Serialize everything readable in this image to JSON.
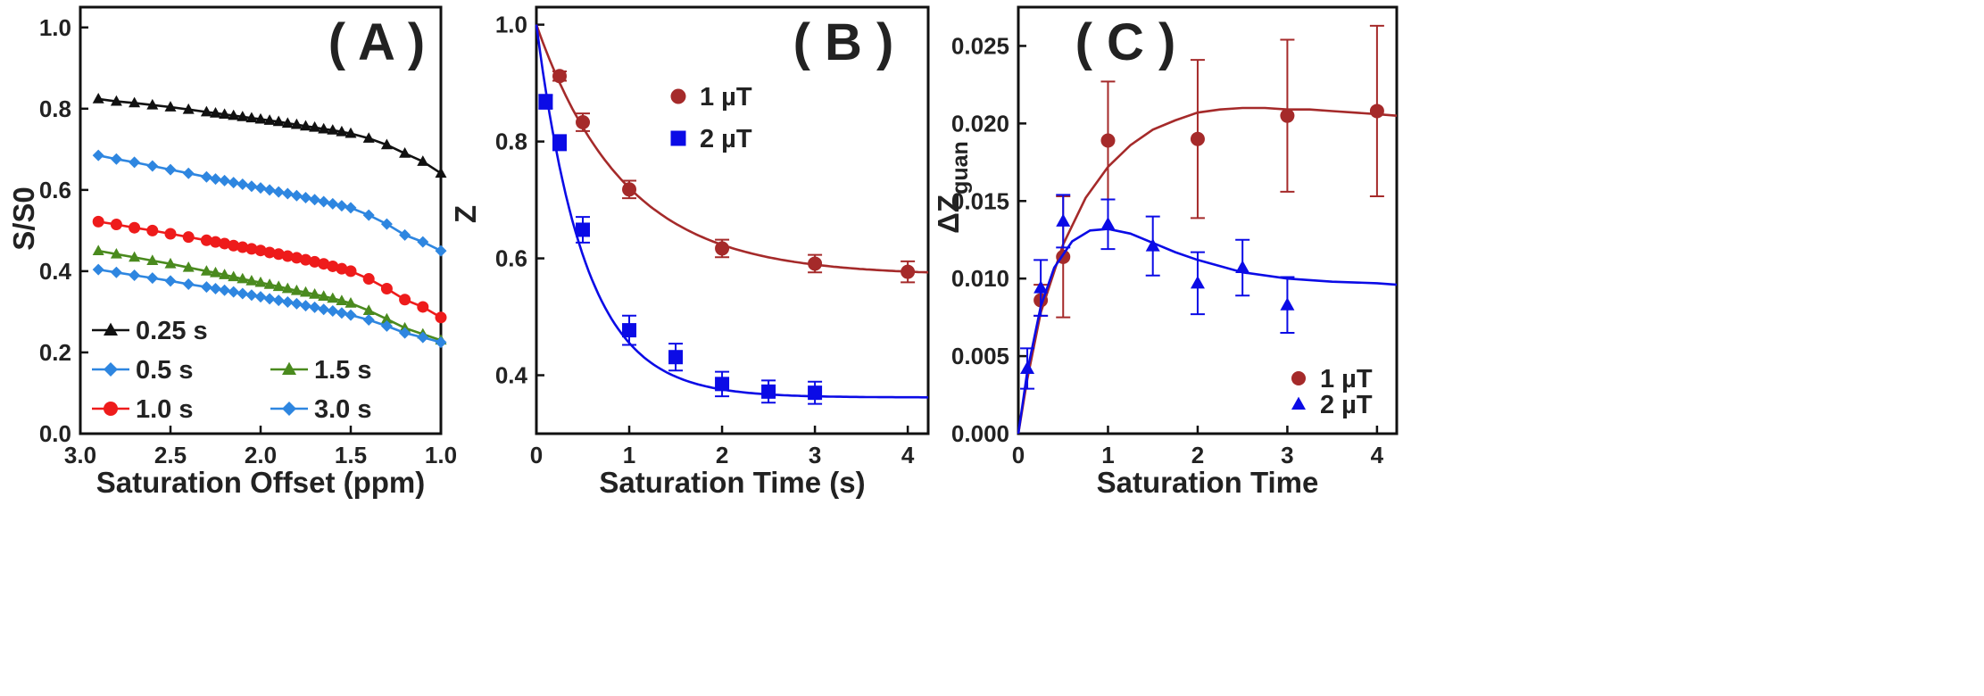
{
  "chart_data": [
    {
      "panel": "A",
      "type": "line",
      "title": "( A )",
      "xlabel": "Saturation Offset (ppm)",
      "ylabel": "S/S0",
      "xlim": [
        3.0,
        1.0
      ],
      "ylim": [
        0.0,
        1.05
      ],
      "x_reversed": true,
      "xticks": [
        3.0,
        2.5,
        2.0,
        1.5,
        1.0
      ],
      "xtick_labels": [
        "3.0",
        "2.5",
        "2.0",
        "1.5",
        "1.0"
      ],
      "yticks": [
        0.0,
        0.2,
        0.4,
        0.6,
        0.8,
        1.0
      ],
      "ytick_labels": [
        "0.0",
        "0.2",
        "0.4",
        "0.6",
        "0.8",
        "1.0"
      ],
      "grid": false,
      "legend_position": "bottom-left",
      "x": [
        2.9,
        2.8,
        2.7,
        2.6,
        2.5,
        2.4,
        2.3,
        2.25,
        2.2,
        2.15,
        2.1,
        2.05,
        2.0,
        1.95,
        1.9,
        1.85,
        1.8,
        1.75,
        1.7,
        1.65,
        1.6,
        1.55,
        1.5,
        1.4,
        1.3,
        1.2,
        1.1,
        1.0
      ],
      "series": [
        {
          "name": "0.25 s",
          "color": "#111111",
          "marker": "triangle",
          "values": [
            0.824,
            0.818,
            0.814,
            0.809,
            0.804,
            0.798,
            0.792,
            0.789,
            0.786,
            0.783,
            0.78,
            0.777,
            0.774,
            0.771,
            0.768,
            0.764,
            0.761,
            0.757,
            0.754,
            0.75,
            0.747,
            0.743,
            0.739,
            0.727,
            0.711,
            0.69,
            0.67,
            0.641
          ]
        },
        {
          "name": "0.5 s",
          "color": "#2E86E0",
          "marker": "diamond",
          "values": [
            0.685,
            0.676,
            0.668,
            0.659,
            0.65,
            0.641,
            0.632,
            0.627,
            0.623,
            0.618,
            0.614,
            0.609,
            0.605,
            0.6,
            0.595,
            0.591,
            0.586,
            0.581,
            0.576,
            0.571,
            0.566,
            0.561,
            0.556,
            0.538,
            0.516,
            0.489,
            0.472,
            0.45
          ]
        },
        {
          "name": "1.0 s",
          "color": "#EE1B1B",
          "marker": "circle",
          "values": [
            0.522,
            0.515,
            0.507,
            0.5,
            0.492,
            0.484,
            0.476,
            0.472,
            0.468,
            0.463,
            0.459,
            0.455,
            0.451,
            0.446,
            0.442,
            0.437,
            0.433,
            0.428,
            0.423,
            0.418,
            0.412,
            0.406,
            0.4,
            0.381,
            0.357,
            0.33,
            0.312,
            0.286
          ]
        },
        {
          "name": "1.5 s",
          "color": "#4A8A1E",
          "marker": "triangle",
          "values": [
            0.45,
            0.442,
            0.434,
            0.426,
            0.418,
            0.409,
            0.4,
            0.396,
            0.391,
            0.386,
            0.381,
            0.376,
            0.372,
            0.367,
            0.362,
            0.357,
            0.352,
            0.348,
            0.343,
            0.338,
            0.333,
            0.327,
            0.321,
            0.303,
            0.282,
            0.26,
            0.245,
            0.23
          ]
        },
        {
          "name": "3.0 s",
          "color": "#2E86E0",
          "marker": "diamond",
          "values": [
            0.404,
            0.397,
            0.39,
            0.383,
            0.376,
            0.368,
            0.361,
            0.357,
            0.353,
            0.349,
            0.345,
            0.341,
            0.337,
            0.332,
            0.328,
            0.324,
            0.32,
            0.315,
            0.311,
            0.306,
            0.302,
            0.297,
            0.292,
            0.28,
            0.265,
            0.248,
            0.237,
            0.225
          ]
        }
      ]
    },
    {
      "panel": "B",
      "type": "scatter",
      "title": "( B )",
      "xlabel": "Saturation Time (s)",
      "ylabel": "Z",
      "xlim": [
        0,
        4.22
      ],
      "ylim": [
        0.3,
        1.03
      ],
      "xticks": [
        0,
        1,
        2,
        3,
        4
      ],
      "xtick_labels": [
        "0",
        "1",
        "2",
        "3",
        "4"
      ],
      "yticks": [
        0.4,
        0.6,
        0.8,
        1.0
      ],
      "ytick_labels": [
        "0.4",
        "0.6",
        "0.8",
        "1.0"
      ],
      "grid": false,
      "legend_position": "top-right",
      "series": [
        {
          "name": "1 µT",
          "color": "#A52A2A",
          "marker": "circle",
          "x": [
            0.25,
            0.5,
            1.0,
            2.0,
            3.0,
            4.0
          ],
          "y": [
            0.912,
            0.833,
            0.718,
            0.617,
            0.591,
            0.577
          ],
          "err": [
            0.008,
            0.015,
            0.015,
            0.015,
            0.015,
            0.018
          ],
          "fit": {
            "model": "a + b*exp(-x/tau)",
            "a": 0.571,
            "b": 0.429,
            "tau": 0.95
          }
        },
        {
          "name": "2 µT",
          "color": "#0B0BE6",
          "marker": "square",
          "x": [
            0.1,
            0.25,
            0.5,
            1.0,
            1.5,
            2.0,
            2.5,
            3.0
          ],
          "y": [
            0.868,
            0.798,
            0.649,
            0.477,
            0.431,
            0.385,
            0.372,
            0.37
          ],
          "err": [
            0.012,
            0.013,
            0.022,
            0.025,
            0.023,
            0.021,
            0.019,
            0.019
          ],
          "fit": {
            "model": "a + b*exp(-x/tau)",
            "a": 0.362,
            "b": 0.638,
            "tau": 0.52
          }
        }
      ]
    },
    {
      "panel": "C",
      "type": "scatter",
      "title": "( C )",
      "xlabel": "Saturation Time",
      "ylabel": "ΔZ",
      "ylabel_subscript": "guan",
      "xlim": [
        0,
        4.22
      ],
      "ylim": [
        0,
        0.0275
      ],
      "xticks": [
        0,
        1,
        2,
        3,
        4
      ],
      "xtick_labels": [
        "0",
        "1",
        "2",
        "3",
        "4"
      ],
      "yticks": [
        0.0,
        0.005,
        0.01,
        0.015,
        0.02,
        0.025
      ],
      "ytick_labels": [
        "0.000",
        "0.005",
        "0.010",
        "0.015",
        "0.020",
        "0.025"
      ],
      "grid": false,
      "legend_position": "bottom-right",
      "series": [
        {
          "name": "1 µT",
          "color": "#A52A2A",
          "marker": "circle",
          "x": [
            0.25,
            0.5,
            1.0,
            2.0,
            3.0,
            4.0
          ],
          "y": [
            0.0086,
            0.0114,
            0.0189,
            0.019,
            0.0205,
            0.0208
          ],
          "err": [
            0.001,
            0.0039,
            0.0038,
            0.0051,
            0.0049,
            0.0055
          ],
          "fit": [
            [
              0,
              0
            ],
            [
              0.1,
              0.0035
            ],
            [
              0.25,
              0.0078
            ],
            [
              0.5,
              0.0122
            ],
            [
              0.75,
              0.0152
            ],
            [
              1.0,
              0.0172
            ],
            [
              1.25,
              0.0186
            ],
            [
              1.5,
              0.0196
            ],
            [
              1.75,
              0.0202
            ],
            [
              2.0,
              0.0207
            ],
            [
              2.25,
              0.0209
            ],
            [
              2.5,
              0.021
            ],
            [
              2.75,
              0.021
            ],
            [
              3.0,
              0.0209
            ],
            [
              3.25,
              0.0209
            ],
            [
              3.5,
              0.0208
            ],
            [
              3.75,
              0.0207
            ],
            [
              4.0,
              0.0206
            ],
            [
              4.22,
              0.0205
            ]
          ]
        },
        {
          "name": "2 µT",
          "color": "#0B0BE6",
          "marker": "triangle",
          "x": [
            0.1,
            0.25,
            0.5,
            1.0,
            1.5,
            2.0,
            2.5,
            3.0
          ],
          "y": [
            0.0042,
            0.0094,
            0.0137,
            0.0135,
            0.0121,
            0.0097,
            0.0107,
            0.0083
          ],
          "err": [
            0.0013,
            0.0018,
            0.0017,
            0.0016,
            0.0019,
            0.002,
            0.0018,
            0.0018
          ],
          "fit": [
            [
              0,
              0
            ],
            [
              0.1,
              0.004
            ],
            [
              0.25,
              0.0082
            ],
            [
              0.4,
              0.0107
            ],
            [
              0.6,
              0.0124
            ],
            [
              0.8,
              0.0131
            ],
            [
              1.0,
              0.0132
            ],
            [
              1.25,
              0.0129
            ],
            [
              1.5,
              0.0123
            ],
            [
              1.75,
              0.0117
            ],
            [
              2.0,
              0.0112
            ],
            [
              2.5,
              0.0104
            ],
            [
              3.0,
              0.01
            ],
            [
              3.5,
              0.0098
            ],
            [
              4.0,
              0.0097
            ],
            [
              4.22,
              0.0096
            ]
          ]
        }
      ]
    }
  ]
}
